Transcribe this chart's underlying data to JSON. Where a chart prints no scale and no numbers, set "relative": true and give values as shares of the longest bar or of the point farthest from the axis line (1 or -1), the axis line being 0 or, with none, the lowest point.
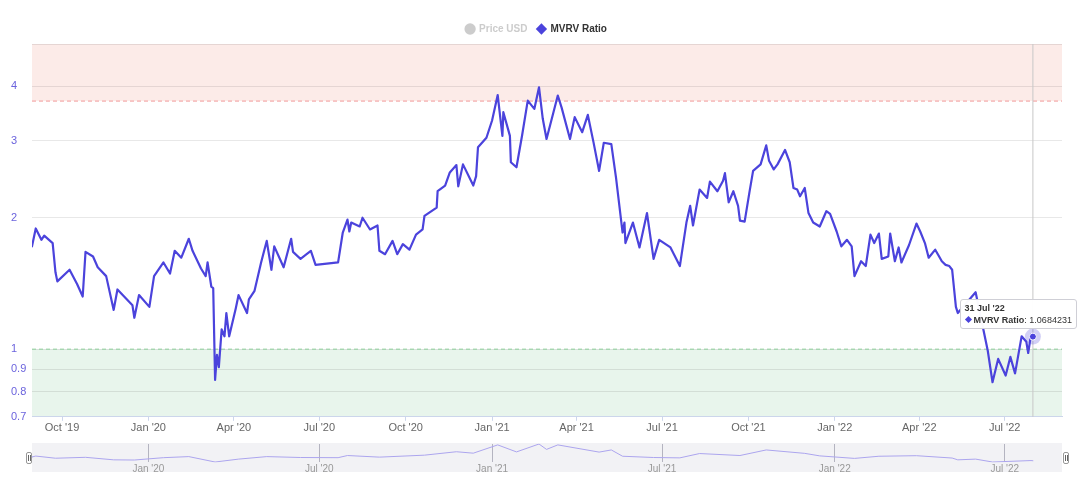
{
  "chart_data": [
    {
      "type": "line",
      "log": "y",
      "grid": "y",
      "legend": "top",
      "x": [
        "2019-08-30",
        "2019-09-03",
        "2019-09-09",
        "2019-09-12",
        "2019-09-21",
        "2019-09-24",
        "2019-09-26",
        "2019-10-09",
        "2019-10-17",
        "2019-10-23",
        "2019-10-26",
        "2019-11-03",
        "2019-11-08",
        "2019-11-17",
        "2019-11-25",
        "2019-11-29",
        "2019-12-15",
        "2019-12-17",
        "2019-12-22",
        "2020-01-02",
        "2020-01-07",
        "2020-01-17",
        "2020-01-24",
        "2020-01-29",
        "2020-02-05",
        "2020-02-13",
        "2020-02-17",
        "2020-02-26",
        "2020-03-02",
        "2020-03-04",
        "2020-03-08",
        "2020-03-10",
        "2020-03-12",
        "2020-03-14",
        "2020-03-16",
        "2020-03-19",
        "2020-03-22",
        "2020-03-24",
        "2020-03-27",
        "2020-04-03",
        "2020-04-06",
        "2020-04-15",
        "2020-04-17",
        "2020-04-23",
        "2020-04-30",
        "2020-05-06",
        "2020-05-11",
        "2020-05-14",
        "2020-05-24",
        "2020-06-01",
        "2020-06-03",
        "2020-06-11",
        "2020-06-22",
        "2020-06-27",
        "2020-07-21",
        "2020-07-26",
        "2020-07-31",
        "2020-08-02",
        "2020-08-04",
        "2020-08-13",
        "2020-08-16",
        "2020-08-24",
        "2020-09-01",
        "2020-09-03",
        "2020-09-09",
        "2020-09-17",
        "2020-09-22",
        "2020-09-28",
        "2020-10-05",
        "2020-10-12",
        "2020-10-19",
        "2020-10-21",
        "2020-11-03",
        "2020-11-04",
        "2020-11-12",
        "2020-11-17",
        "2020-11-24",
        "2020-11-26",
        "2020-12-01",
        "2020-12-12",
        "2020-12-15",
        "2020-12-17",
        "2020-12-26",
        "2021-01-01",
        "2021-01-07",
        "2021-01-12",
        "2021-01-13",
        "2021-01-20",
        "2021-01-21",
        "2021-01-27",
        "2021-02-02",
        "2021-02-08",
        "2021-02-15",
        "2021-02-20",
        "2021-02-24",
        "2021-02-28",
        "2021-03-12",
        "2021-03-16",
        "2021-03-25",
        "2021-03-30",
        "2021-04-07",
        "2021-04-13",
        "2021-04-19",
        "2021-04-25",
        "2021-04-30",
        "2021-05-08",
        "2021-05-13",
        "2021-05-20",
        "2021-05-22",
        "2021-05-23",
        "2021-05-31",
        "2021-06-07",
        "2021-06-15",
        "2021-06-22",
        "2021-06-28",
        "2021-07-10",
        "2021-07-20",
        "2021-07-27",
        "2021-07-31",
        "2021-08-03",
        "2021-08-10",
        "2021-08-18",
        "2021-08-21",
        "2021-08-29",
        "2021-09-04",
        "2021-09-06",
        "2021-09-10",
        "2021-09-15",
        "2021-09-20",
        "2021-09-22",
        "2021-09-27",
        "2021-10-02",
        "2021-10-06",
        "2021-10-14",
        "2021-10-20",
        "2021-10-23",
        "2021-10-28",
        "2021-11-01",
        "2021-11-09",
        "2021-11-14",
        "2021-11-18",
        "2021-11-22",
        "2021-11-25",
        "2021-11-30",
        "2021-12-04",
        "2021-12-09",
        "2021-12-16",
        "2021-12-23",
        "2021-12-27",
        "2022-01-03",
        "2022-01-08",
        "2022-01-14",
        "2022-01-19",
        "2022-01-22",
        "2022-01-29",
        "2022-02-03",
        "2022-02-08",
        "2022-02-12",
        "2022-02-17",
        "2022-02-20",
        "2022-02-27",
        "2022-03-01",
        "2022-03-06",
        "2022-03-10",
        "2022-03-13",
        "2022-03-21",
        "2022-03-29",
        "2022-04-02",
        "2022-04-07",
        "2022-04-11",
        "2022-04-18",
        "2022-04-25",
        "2022-04-29",
        "2022-05-03",
        "2022-05-06",
        "2022-05-10",
        "2022-05-12",
        "2022-05-31",
        "2022-06-13",
        "2022-06-18",
        "2022-06-24",
        "2022-07-02",
        "2022-07-07",
        "2022-07-12",
        "2022-07-19",
        "2022-07-24",
        "2022-07-26",
        "2022-07-29",
        "2022-07-31"
      ],
      "series": [
        {
          "name": "Price USD",
          "color": "#cccccc",
          "values": [
            null,
            null,
            null,
            null,
            null,
            null,
            null,
            null,
            null,
            null,
            null,
            null,
            null,
            null,
            null,
            null,
            null,
            null,
            null,
            null,
            null,
            null,
            null,
            null,
            null,
            null,
            null,
            null,
            null,
            null,
            null,
            null,
            null,
            null,
            null,
            null,
            null,
            null,
            null,
            null,
            null,
            null,
            null,
            null,
            null,
            null,
            null,
            null,
            null,
            null,
            null,
            null,
            null,
            null,
            null,
            null,
            null,
            null,
            null,
            null,
            null,
            null,
            null,
            null,
            null,
            null,
            null,
            null,
            null,
            null,
            null,
            null,
            null,
            null,
            null,
            null,
            null,
            null,
            null,
            null,
            null,
            null,
            null,
            null,
            null,
            null,
            null,
            null,
            null,
            null,
            null,
            null,
            null,
            null,
            null,
            null,
            null,
            null,
            null,
            null,
            null,
            null,
            null,
            null,
            null,
            null,
            null,
            null,
            null,
            null,
            null,
            null,
            null,
            null,
            null,
            null,
            null,
            null,
            null,
            null,
            null,
            null,
            null,
            null,
            null,
            null,
            null,
            null,
            null,
            null,
            null,
            null,
            null,
            null,
            null,
            null,
            null,
            null,
            null,
            null,
            null,
            null,
            null,
            null,
            null,
            null,
            null,
            null,
            null,
            null,
            null,
            null,
            null,
            null,
            null,
            null,
            null,
            null,
            null,
            null,
            null,
            null,
            null,
            null,
            null,
            null,
            null,
            null,
            null,
            null,
            null,
            null,
            null,
            null,
            null,
            null,
            null,
            null,
            null,
            null,
            null,
            null,
            null,
            null,
            null,
            null,
            null,
            null,
            null
          ]
        },
        {
          "name": "MVRV Ratio",
          "color": "#4b43dc",
          "values": [
            1.72,
            1.89,
            1.78,
            1.82,
            1.75,
            1.5,
            1.43,
            1.52,
            1.41,
            1.32,
            1.67,
            1.63,
            1.54,
            1.47,
            1.23,
            1.37,
            1.26,
            1.18,
            1.33,
            1.25,
            1.47,
            1.58,
            1.49,
            1.68,
            1.62,
            1.79,
            1.68,
            1.53,
            1.47,
            1.58,
            1.39,
            1.38,
            0.85,
            0.97,
            0.91,
            1.11,
            1.07,
            1.21,
            1.07,
            1.24,
            1.33,
            1.21,
            1.3,
            1.36,
            1.58,
            1.77,
            1.52,
            1.72,
            1.54,
            1.79,
            1.67,
            1.61,
            1.68,
            1.56,
            1.58,
            1.85,
            1.98,
            1.86,
            1.95,
            1.91,
            2.0,
            1.88,
            1.92,
            1.68,
            1.65,
            1.77,
            1.65,
            1.74,
            1.69,
            1.83,
            1.88,
            2.02,
            2.11,
            2.3,
            2.37,
            2.54,
            2.64,
            2.36,
            2.65,
            2.37,
            2.49,
            2.9,
            3.05,
            3.34,
            3.82,
            3.08,
            3.49,
            3.08,
            2.68,
            2.61,
            3.09,
            3.71,
            3.55,
            3.98,
            3.37,
            3.03,
            3.81,
            3.58,
            3.03,
            3.4,
            3.14,
            3.44,
            2.98,
            2.56,
            2.97,
            2.95,
            2.47,
            1.85,
            1.95,
            1.75,
            1.95,
            1.71,
            2.05,
            1.61,
            1.78,
            1.71,
            1.55,
            1.95,
            2.13,
            1.92,
            2.32,
            2.22,
            2.42,
            2.3,
            2.43,
            2.53,
            2.17,
            2.3,
            2.13,
            1.97,
            1.96,
            2.28,
            2.56,
            2.65,
            2.93,
            2.7,
            2.58,
            2.65,
            2.86,
            2.68,
            2.34,
            2.32,
            2.24,
            2.34,
            2.05,
            1.95,
            1.91,
            2.07,
            2.04,
            1.86,
            1.72,
            1.78,
            1.72,
            1.47,
            1.59,
            1.55,
            1.83,
            1.75,
            1.84,
            1.61,
            1.63,
            1.84,
            1.59,
            1.71,
            1.58,
            1.73,
            1.94,
            1.86,
            1.75,
            1.62,
            1.69,
            1.59,
            1.56,
            1.55,
            1.52,
            1.25,
            1.21,
            1.35,
            0.99,
            0.84,
            0.95,
            0.87,
            0.96,
            0.88,
            1.07,
            1.04,
            0.98,
            1.08,
            1.0684231
          ]
        }
      ],
      "xlim": [
        "2019-08-30",
        "2022-08-31"
      ],
      "xticks": [
        {
          "value": "2019-10-01",
          "label": "Oct '19"
        },
        {
          "value": "2020-01-01",
          "label": "Jan '20"
        },
        {
          "value": "2020-04-01",
          "label": "Apr '20"
        },
        {
          "value": "2020-07-01",
          "label": "Jul '20"
        },
        {
          "value": "2020-10-01",
          "label": "Oct '20"
        },
        {
          "value": "2021-01-01",
          "label": "Jan '21"
        },
        {
          "value": "2021-04-01",
          "label": "Apr '21"
        },
        {
          "value": "2021-07-01",
          "label": "Jul '21"
        },
        {
          "value": "2021-10-01",
          "label": "Oct '21"
        },
        {
          "value": "2022-01-01",
          "label": "Jan '22"
        },
        {
          "value": "2022-04-01",
          "label": "Apr '22"
        },
        {
          "value": "2022-07-01",
          "label": "Jul '22"
        }
      ],
      "ylim": [
        0.7,
        5
      ],
      "yticks": [
        0.7,
        0.8,
        0.9,
        1,
        2,
        3,
        4,
        {
          "value": 5,
          "label": null
        }
      ],
      "bands": [
        {
          "axis": "y",
          "from": 3.7,
          "to": 5,
          "color": "#fcebe8"
        },
        {
          "axis": "y",
          "from": 0.7,
          "to": 1,
          "color": "#e8f5ec"
        }
      ],
      "ref_lines": [
        {
          "axis": "y",
          "value": 3.7,
          "color": "#f29a9a",
          "line_style": "dashed"
        },
        {
          "axis": "y",
          "value": 1,
          "color": "#8ccf9a",
          "line_style": "dashed"
        },
        {
          "axis": "x",
          "value": "2022-07-31",
          "color": "#c8c8c8",
          "line_style": "solid"
        }
      ],
      "annotations": [
        {
          "text": "31 Jul '22\nMVRV Ratio: 1.0684231",
          "x": "2022-07-31",
          "y": 1.0684231
        }
      ]
    },
    {
      "type": "line",
      "relative": true,
      "grid": "x",
      "color": "#aca5ee",
      "x": [
        "2019-08-30",
        "2019-09-03",
        "2019-09-24",
        "2019-10-26",
        "2019-11-25",
        "2019-12-17",
        "2020-01-17",
        "2020-02-13",
        "2020-03-12",
        "2020-04-06",
        "2020-05-06",
        "2020-06-11",
        "2020-07-21",
        "2020-07-31",
        "2020-09-03",
        "2020-10-21",
        "2020-11-24",
        "2020-12-12",
        "2021-01-07",
        "2021-01-27",
        "2021-02-20",
        "2021-02-28",
        "2021-03-12",
        "2021-04-25",
        "2021-05-08",
        "2021-05-20",
        "2021-06-22",
        "2021-07-20",
        "2021-08-10",
        "2021-09-22",
        "2021-10-20",
        "2021-11-30",
        "2021-12-16",
        "2022-01-22",
        "2022-02-17",
        "2022-03-29",
        "2022-05-06",
        "2022-05-12",
        "2022-05-31",
        "2022-06-18",
        "2022-07-29",
        "2022-07-31"
      ],
      "values": [
        0.28,
        0.33,
        0.21,
        0.26,
        0.12,
        0.11,
        0.24,
        0.3,
        0.0,
        0.16,
        0.3,
        0.25,
        0.24,
        0.36,
        0.27,
        0.38,
        0.57,
        0.49,
        0.95,
        0.56,
        1.0,
        0.7,
        0.95,
        0.55,
        0.67,
        0.32,
        0.25,
        0.23,
        0.47,
        0.36,
        0.67,
        0.48,
        0.34,
        0.2,
        0.32,
        0.35,
        0.22,
        0.12,
        0.16,
        0.0,
        0.08,
        0.07
      ],
      "xlim": [
        "2019-08-30",
        "2022-08-31"
      ],
      "xticks": [
        {
          "value": "2020-01-01",
          "label": "Jan '20"
        },
        {
          "value": "2020-07-01",
          "label": "Jul '20"
        },
        {
          "value": "2021-01-01",
          "label": "Jan '21"
        },
        {
          "value": "2021-07-01",
          "label": "Jul '21"
        },
        {
          "value": "2022-01-01",
          "label": "Jan '22"
        },
        {
          "value": "2022-07-01",
          "label": "Jul '22"
        }
      ]
    }
  ]
}
